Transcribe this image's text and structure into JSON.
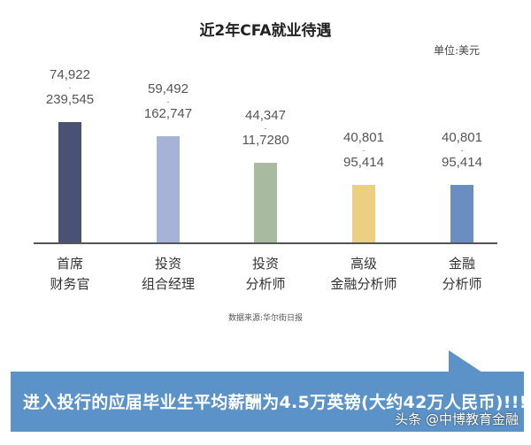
{
  "chart_data": {
    "type": "bar",
    "title": "近2年CFA就业待遇",
    "unit_label": "单位:美元",
    "categories": [
      "首席\n财务官",
      "投资\n组合经理",
      "投资\n分析师",
      "高级\n金融分析师",
      "金融\n分析师"
    ],
    "category_lines": [
      [
        "首席",
        "财务官"
      ],
      [
        "投资",
        "组合经理"
      ],
      [
        "投资",
        "分析师"
      ],
      [
        "高级",
        "金融分析师"
      ],
      [
        "金融",
        "分析师"
      ]
    ],
    "ranges": [
      {
        "low": "74,922",
        "high": "239,545"
      },
      {
        "low": "59,492",
        "high": "162,747"
      },
      {
        "low": "44,347",
        "high": "11,7280"
      },
      {
        "low": "40,801",
        "high": "95,414"
      },
      {
        "low": "40,801",
        "high": "95,414"
      }
    ],
    "values": [
      239545,
      162747,
      117280,
      95414,
      95414
    ],
    "range_separator": "-",
    "colors": [
      "#4a5274",
      "#a7b3d6",
      "#a8bba1",
      "#ebcf82",
      "#6b8dbf"
    ],
    "axis_color": "#555555",
    "grid": false,
    "legend": "none",
    "source": "数据来源:华尔街日报"
  },
  "banner": {
    "text": "进入投行的应届毕业生平均薪酬为4.5万英镑(大约42万人民币)!!!",
    "color": "#5b93c9"
  },
  "watermark": "头条 @中博教育金融"
}
